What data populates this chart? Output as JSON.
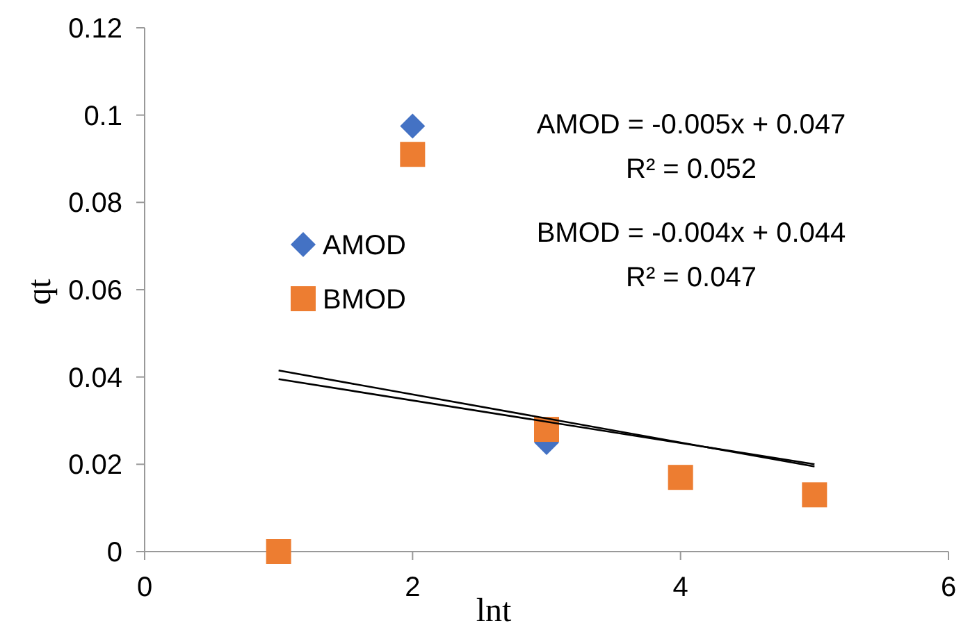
{
  "chart_data": {
    "type": "scatter",
    "xlabel": "lnt",
    "ylabel": "qt",
    "xlim": [
      0,
      6
    ],
    "xticks": [
      0,
      2,
      4,
      6
    ],
    "ylim": [
      0,
      0.12
    ],
    "yticks": [
      0,
      0.02,
      0.04,
      0.06,
      0.08,
      0.1,
      0.12
    ],
    "grid": false,
    "legend": "left",
    "series": [
      {
        "name": "AMOD",
        "color": "#4472c4",
        "marker": "diamond",
        "x": [
          2,
          3
        ],
        "values": [
          0.0975,
          0.025
        ]
      },
      {
        "name": "BMOD",
        "color": "#ed7d31",
        "marker": "square",
        "x": [
          1,
          2,
          3,
          4,
          5
        ],
        "values": [
          0,
          0.091,
          0.028,
          0.017,
          0.013
        ]
      },
      {
        "type": "line",
        "color": "#000000",
        "x": [
          1,
          5
        ],
        "values": [
          0.0415,
          0.0195
        ]
      },
      {
        "type": "line",
        "color": "#000000",
        "x": [
          1,
          5
        ],
        "values": [
          0.0395,
          0.02
        ]
      }
    ],
    "annotations": [
      "AMOD = -0.005x + 0.047",
      "R² = 0.052",
      "BMOD = -0.004x + 0.044",
      "R² = 0.047"
    ]
  }
}
